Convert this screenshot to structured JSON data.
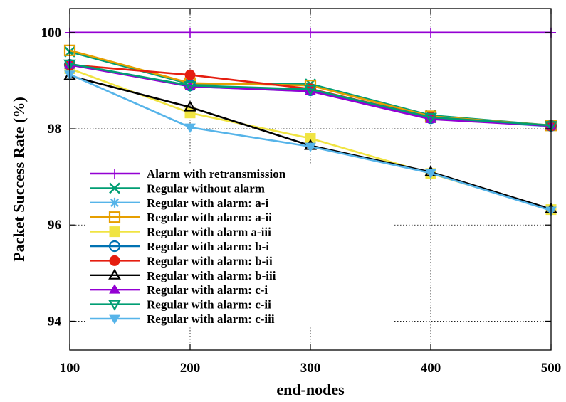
{
  "chart_data": {
    "type": "line",
    "xlabel": "end-nodes",
    "ylabel": "Packet Success Rate (%)",
    "xlim": [
      100,
      500
    ],
    "ylim": [
      93.4,
      100.5
    ],
    "x_ticks": [
      100,
      200,
      300,
      400,
      500
    ],
    "y_ticks": [
      94,
      96,
      98,
      100
    ],
    "x": [
      100,
      200,
      300,
      400,
      500
    ],
    "grid": "dotted, partially hidden behind legend",
    "legend_position": "lower-left inside plot",
    "series": [
      {
        "name": "Alarm with retransmission",
        "color": "#9400d3",
        "marker": "plus",
        "values": [
          100,
          100,
          100,
          100,
          100
        ]
      },
      {
        "name": "Regular without alarm",
        "color": "#009e73",
        "marker": "x",
        "values": [
          99.6,
          98.93,
          98.93,
          98.28,
          98.07
        ]
      },
      {
        "name": "Regular with alarm: a-i",
        "color": "#56b4e9",
        "marker": "star",
        "values": [
          99.35,
          98.88,
          98.78,
          98.22,
          98.05
        ]
      },
      {
        "name": "Regular with alarm: a-ii",
        "color": "#e69f00",
        "marker": "square-open",
        "values": [
          99.63,
          98.95,
          98.9,
          98.26,
          98.07
        ]
      },
      {
        "name": "Regular with alarm a-iii",
        "color": "#f0e442",
        "marker": "square-filled",
        "values": [
          99.25,
          98.33,
          97.8,
          97.07,
          96.32
        ]
      },
      {
        "name": "Regular with alarm: b-i",
        "color": "#0072b2",
        "marker": "circle-open",
        "values": [
          99.33,
          98.9,
          98.8,
          98.22,
          98.06
        ]
      },
      {
        "name": "Regular with alarm: b-ii",
        "color": "#e51e10",
        "marker": "circle-filled",
        "values": [
          99.33,
          99.12,
          98.83,
          98.24,
          98.06
        ]
      },
      {
        "name": "Regular with alarm: b-iii",
        "color": "#000000",
        "marker": "triangle-up-open",
        "values": [
          99.1,
          98.45,
          97.65,
          97.1,
          96.33
        ]
      },
      {
        "name": "Regular with alarm: c-i",
        "color": "#9400d3",
        "marker": "triangle-up-filled",
        "values": [
          99.33,
          98.88,
          98.78,
          98.2,
          98.06
        ]
      },
      {
        "name": "Regular with alarm: c-ii",
        "color": "#009e73",
        "marker": "triangle-down-open",
        "values": [
          99.35,
          98.9,
          98.82,
          98.24,
          98.07
        ]
      },
      {
        "name": "Regular with alarm: c-iii",
        "color": "#56b4e9",
        "marker": "triangle-down-filled",
        "values": [
          99.13,
          98.03,
          97.63,
          97.08,
          96.3
        ]
      }
    ]
  }
}
